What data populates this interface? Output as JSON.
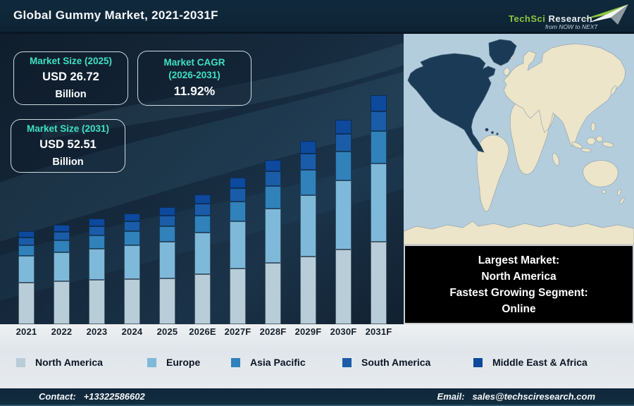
{
  "header": {
    "title": "Global Gummy Market, 2021-2031F",
    "logo": {
      "brand_primary": "TechSci",
      "brand_secondary": "Research",
      "tagline": "from NOW to NEXT"
    }
  },
  "stats": {
    "market_size_2025": {
      "label": "Market Size (2025)",
      "value": "USD 26.72",
      "unit": "Billion"
    },
    "market_cagr": {
      "label_line1": "Market CAGR",
      "label_line2": "(2026-2031)",
      "value": "11.92%"
    },
    "market_size_2031": {
      "label": "Market Size (2031)",
      "value": "USD 52.51",
      "unit": "Billion"
    }
  },
  "chart_data": {
    "type": "bar",
    "stacked": true,
    "title": "Global Gummy Market, 2021-2031F",
    "unit": "USD Billion",
    "values_estimated_from_pixels": true,
    "categories": [
      "2021",
      "2022",
      "2023",
      "2024",
      "2025",
      "2026E",
      "2027F",
      "2028F",
      "2029F",
      "2030F",
      "2031F"
    ],
    "series": [
      {
        "name": "North America",
        "color": "#b9cdd8",
        "values": [
          9.54,
          9.87,
          10.16,
          10.33,
          10.42,
          11.52,
          12.72,
          14.05,
          15.52,
          17.13,
          18.9
        ]
      },
      {
        "name": "Europe",
        "color": "#7fb9da",
        "values": [
          6.07,
          6.58,
          7.14,
          7.78,
          8.42,
          9.57,
          10.88,
          12.36,
          14.05,
          15.86,
          17.85
        ]
      },
      {
        "name": "Asia Pacific",
        "color": "#3181bb",
        "values": [
          2.47,
          2.72,
          3.0,
          3.24,
          3.47,
          3.95,
          4.48,
          5.09,
          5.79,
          6.57,
          7.46
        ]
      },
      {
        "name": "South America",
        "color": "#1b5ca8",
        "values": [
          1.77,
          1.93,
          2.13,
          2.3,
          2.46,
          2.72,
          3.01,
          3.33,
          3.69,
          4.08,
          4.57
        ]
      },
      {
        "name": "Middle East & Africa",
        "color": "#0d499c",
        "values": [
          1.45,
          1.6,
          1.77,
          1.85,
          1.95,
          2.15,
          2.38,
          2.63,
          2.88,
          3.29,
          3.73
        ]
      }
    ],
    "totals": [
      21.3,
      22.7,
      24.2,
      25.5,
      26.72,
      29.91,
      33.47,
      37.46,
      41.93,
      46.93,
      52.51
    ],
    "legend_position": "bottom",
    "grid": false,
    "axes_shown": false
  },
  "map": {
    "highlighted_region": "North America",
    "highlight_color": "#1b3a55",
    "land_color": "#ece5c9",
    "ocean_color": "#b3cddd"
  },
  "info_box": {
    "lines": [
      "Largest Market:",
      "North America",
      "Fastest Growing Segment:",
      "Online"
    ]
  },
  "footer": {
    "contact_label": "Contact:",
    "contact_value": "+13322586602",
    "email_label": "Email:",
    "email_value": "sales@techsciresearch.com"
  },
  "colors": {
    "accent_teal": "#3fe0c4",
    "header_bg": "#0e2435",
    "panel_bg": "#16293c",
    "band_bg": "#e6eaee",
    "logo_green": "#8dc63f"
  }
}
